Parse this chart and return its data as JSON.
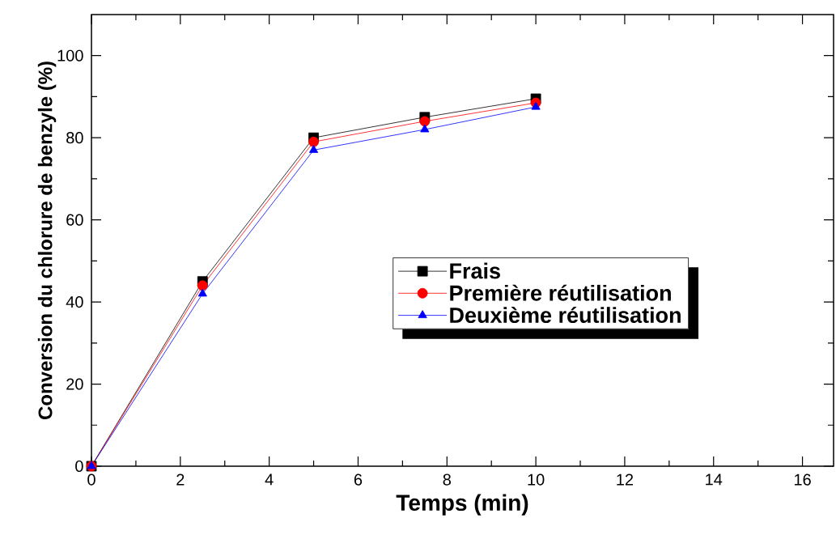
{
  "chart_data": {
    "type": "line",
    "xlabel": "Temps (min)",
    "ylabel": "Conversion du chlorure de benzyle (%)",
    "x": [
      0,
      2.5,
      5,
      7.5,
      10
    ],
    "series": [
      {
        "name": "Frais",
        "color": "#000000",
        "marker": "square",
        "values": [
          0,
          45,
          80,
          85,
          89.5
        ]
      },
      {
        "name": "Première réutilisation",
        "color": "#ff0000",
        "marker": "circle",
        "values": [
          0,
          44,
          79,
          84,
          88.5
        ]
      },
      {
        "name": "Deuxième réutilisation",
        "color": "#0000ff",
        "marker": "triangle",
        "values": [
          0,
          42,
          77,
          82,
          87.5
        ]
      }
    ],
    "xlim": [
      0,
      16.7
    ],
    "ylim": [
      0,
      110
    ],
    "xticks": [
      0,
      2,
      4,
      6,
      8,
      10,
      12,
      14,
      16
    ],
    "yticks": [
      0,
      20,
      40,
      60,
      80,
      100
    ],
    "legend": "right"
  }
}
